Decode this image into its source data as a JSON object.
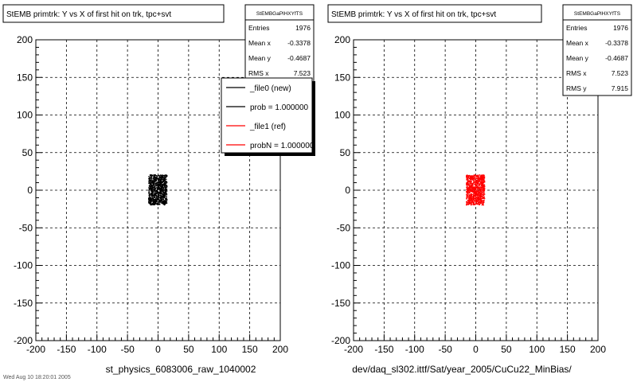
{
  "window": {
    "footer_text": "Wed Aug 10 18:20:01 2005"
  },
  "chart_data": [
    {
      "type": "scatter",
      "title": "StEMB primtrk: Y vs X of first hit on trk, tpc+svt",
      "xlabel": "st_physics_6083006_raw_1040002",
      "ylabel": "",
      "xlim": [
        -200,
        200
      ],
      "ylim": [
        -200,
        200
      ],
      "xticks": [
        -200,
        -150,
        -100,
        -50,
        0,
        50,
        100,
        150,
        200
      ],
      "yticks": [
        -200,
        -150,
        -100,
        -50,
        0,
        50,
        100,
        150,
        200
      ],
      "grid": true,
      "marker_color": "#000000",
      "cluster": {
        "x_range": [
          -15,
          15
        ],
        "y_range": [
          -20,
          20
        ]
      },
      "stats": {
        "name": "StEMBGaPlHXYfTS",
        "rows": [
          {
            "label": "Entries",
            "value": "1976"
          },
          {
            "label": "Mean x",
            "value": "-0.3378"
          },
          {
            "label": "Mean y",
            "value": "-0.4687"
          },
          {
            "label": "RMS x",
            "value": "7.523"
          }
        ]
      },
      "legend": {
        "placement": "top-right",
        "entries": [
          {
            "label": "_file0 (new)",
            "color": "#000000"
          },
          {
            "label": "prob = 1.000000",
            "color": "#000000"
          },
          {
            "label": "_file1 (ref)",
            "color": "#ff0000"
          },
          {
            "label": "probN = 1.000000",
            "color": "#ff0000"
          }
        ]
      }
    },
    {
      "type": "scatter",
      "title": "StEMB primtrk: Y vs X of first hit on trk, tpc+svt",
      "xlabel": "dev/daq_sl302.ittf/Sat/year_2005/CuCu22_MinBias/",
      "ylabel": "",
      "xlim": [
        -200,
        200
      ],
      "ylim": [
        -200,
        200
      ],
      "xticks": [
        -200,
        -150,
        -100,
        -50,
        0,
        50,
        100,
        150,
        200
      ],
      "yticks": [
        -200,
        -150,
        -100,
        -50,
        0,
        50,
        100,
        150,
        200
      ],
      "grid": true,
      "marker_color": "#ff0000",
      "cluster": {
        "x_range": [
          -15,
          15
        ],
        "y_range": [
          -20,
          20
        ]
      },
      "stats": {
        "name": "StEMBGaPlHXYfTS",
        "rows": [
          {
            "label": "Entries",
            "value": "1976"
          },
          {
            "label": "Mean x",
            "value": "-0.3378"
          },
          {
            "label": "Mean y",
            "value": "-0.4687"
          },
          {
            "label": "RMS x",
            "value": "7.523"
          },
          {
            "label": "RMS y",
            "value": "7.915"
          }
        ]
      }
    }
  ]
}
